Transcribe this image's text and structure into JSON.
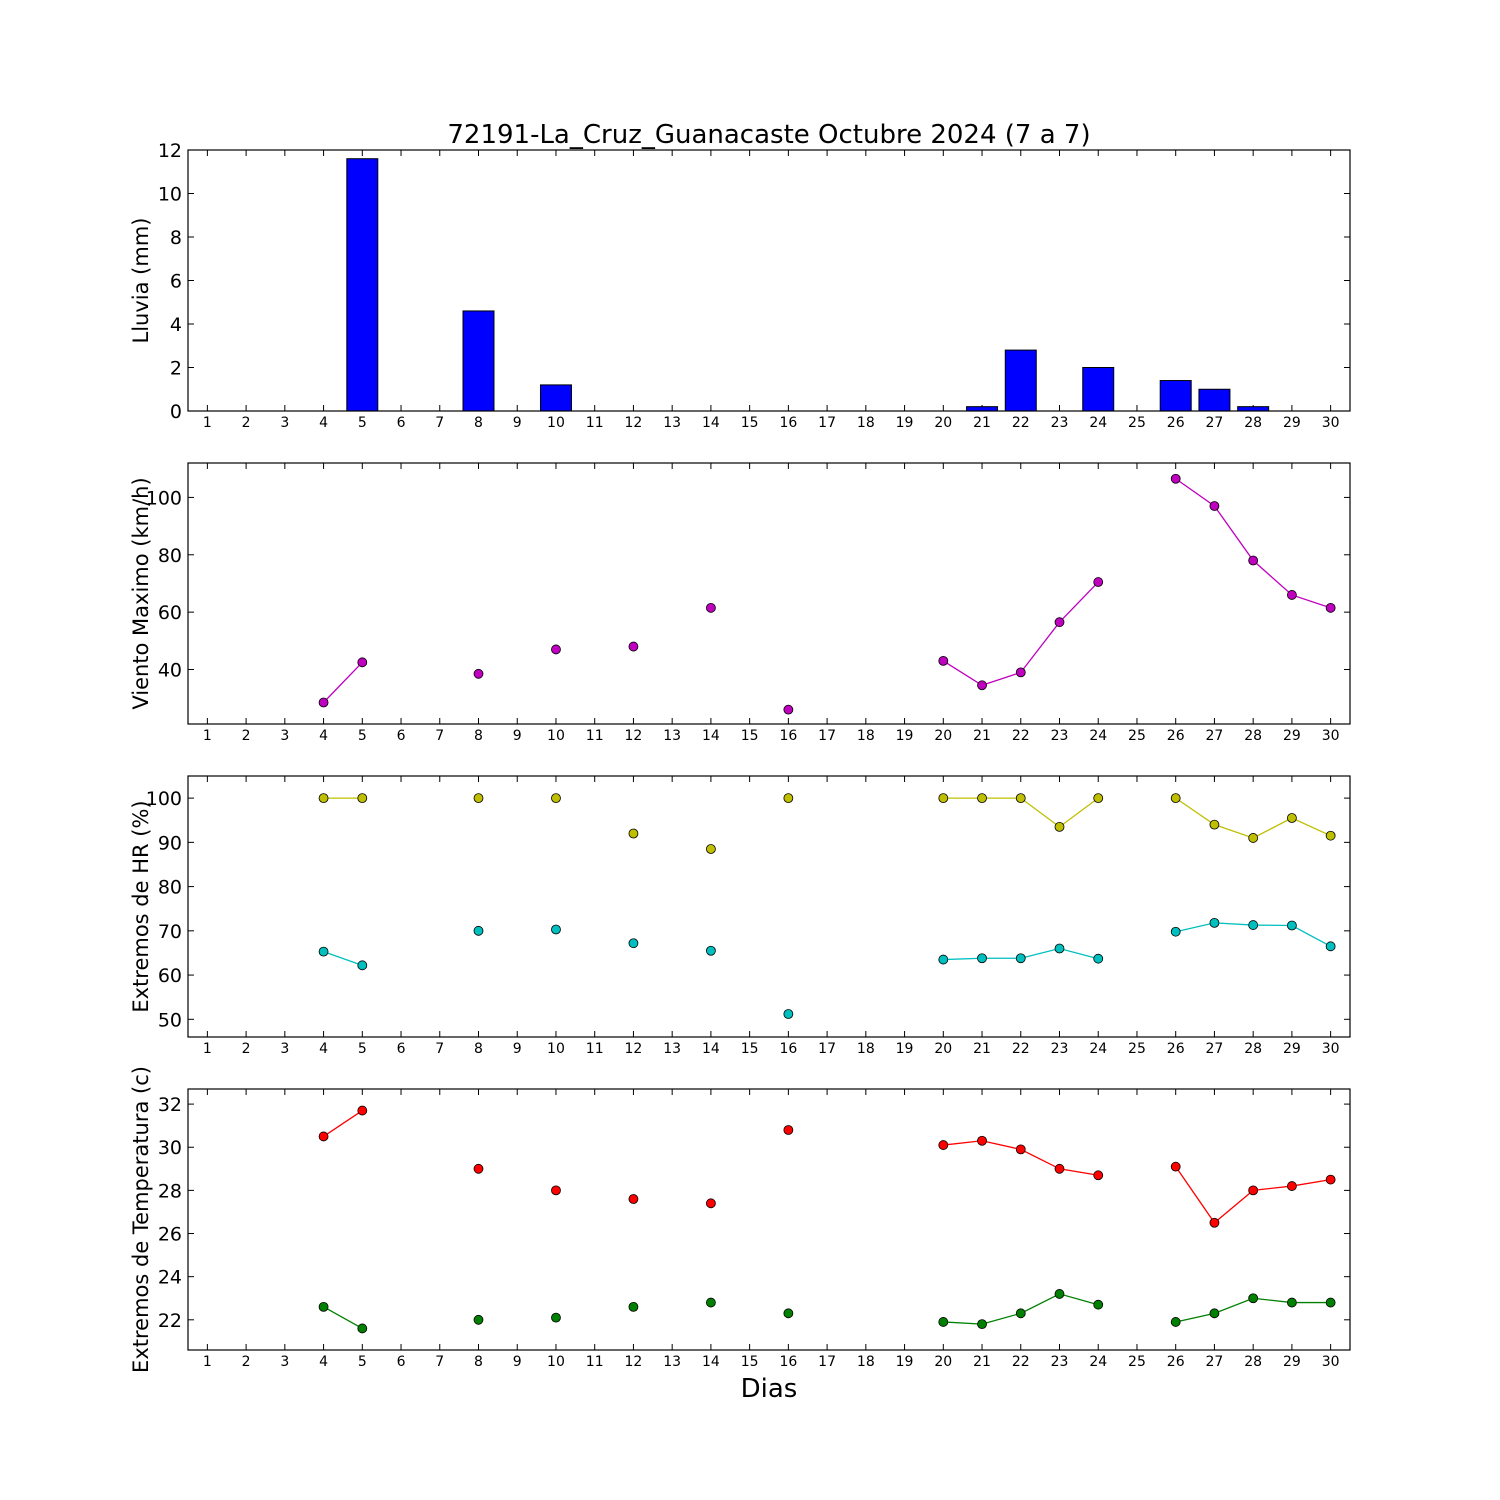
{
  "chart_data": {
    "title": "72191-La_Cruz_Guanacaste Octubre 2024  (7 a 7)",
    "xlabel": "Dias",
    "x": [
      1,
      2,
      3,
      4,
      5,
      6,
      7,
      8,
      9,
      10,
      11,
      12,
      13,
      14,
      15,
      16,
      17,
      18,
      19,
      20,
      21,
      22,
      23,
      24,
      25,
      26,
      27,
      28,
      29,
      30
    ],
    "xlim": [
      0.5,
      30.5
    ],
    "panels": [
      {
        "id": "lluvia",
        "type": "bar",
        "ylabel": "Lluvia (mm)",
        "ylim": [
          0,
          12
        ],
        "yticks": [
          0,
          2,
          4,
          6,
          8,
          10,
          12
        ],
        "series": [
          {
            "color": "#0000ff",
            "values": [
              null,
              null,
              null,
              0,
              11.6,
              null,
              null,
              4.6,
              null,
              1.2,
              0,
              0,
              0,
              0,
              0,
              0,
              0,
              0,
              0,
              0,
              0.2,
              2.8,
              null,
              2.0,
              null,
              1.4,
              1.0,
              0.2,
              0,
              null
            ]
          }
        ]
      },
      {
        "id": "viento",
        "type": "line",
        "ylabel": "Viento Maximo (km/h)",
        "ylim": [
          21,
          112
        ],
        "yticks": [
          40,
          60,
          80,
          100
        ],
        "series": [
          {
            "color": "#bf00bf",
            "values": [
              null,
              null,
              null,
              28.5,
              42.5,
              null,
              null,
              38.5,
              null,
              47,
              null,
              48,
              null,
              61.5,
              null,
              26,
              null,
              null,
              null,
              43,
              34.5,
              39,
              56.5,
              70.5,
              null,
              106.5,
              97,
              78,
              66,
              61.5
            ]
          }
        ]
      },
      {
        "id": "hr",
        "type": "line",
        "ylabel": "Extremos de HR (%)",
        "ylim": [
          46,
          105
        ],
        "yticks": [
          50,
          60,
          70,
          80,
          90,
          100
        ],
        "series": [
          {
            "color": "#bfbf00",
            "values": [
              null,
              null,
              null,
              100,
              100,
              null,
              null,
              100,
              null,
              100,
              null,
              92,
              null,
              88.5,
              null,
              100,
              null,
              null,
              null,
              100,
              100,
              100,
              93.5,
              100,
              null,
              100,
              94,
              91,
              95.5,
              91.5
            ]
          },
          {
            "color": "#00bfbf",
            "values": [
              null,
              null,
              null,
              65.3,
              62.2,
              null,
              null,
              70,
              null,
              70.3,
              null,
              67.2,
              null,
              65.5,
              null,
              51.2,
              null,
              null,
              null,
              63.5,
              63.8,
              63.8,
              66,
              63.7,
              null,
              69.8,
              71.8,
              71.3,
              71.2,
              66.5
            ]
          }
        ]
      },
      {
        "id": "temperatura",
        "type": "line",
        "ylabel": "Extremos de Temperatura (c)",
        "ylim": [
          20.6,
          32.7
        ],
        "yticks": [
          22,
          24,
          26,
          28,
          30,
          32
        ],
        "series": [
          {
            "color": "#ff0000",
            "values": [
              null,
              null,
              null,
              30.5,
              31.7,
              null,
              null,
              29,
              null,
              28,
              null,
              27.6,
              null,
              27.4,
              null,
              30.8,
              null,
              null,
              null,
              30.1,
              30.3,
              29.9,
              29,
              28.7,
              null,
              29.1,
              26.5,
              28,
              28.2,
              28.5
            ]
          },
          {
            "color": "#008000",
            "values": [
              null,
              null,
              null,
              22.6,
              21.6,
              null,
              null,
              22,
              null,
              22.1,
              null,
              22.6,
              null,
              22.8,
              null,
              22.3,
              null,
              null,
              null,
              21.9,
              21.8,
              22.3,
              23.2,
              22.7,
              null,
              21.9,
              22.3,
              23,
              22.8,
              22.8
            ]
          }
        ]
      }
    ]
  }
}
